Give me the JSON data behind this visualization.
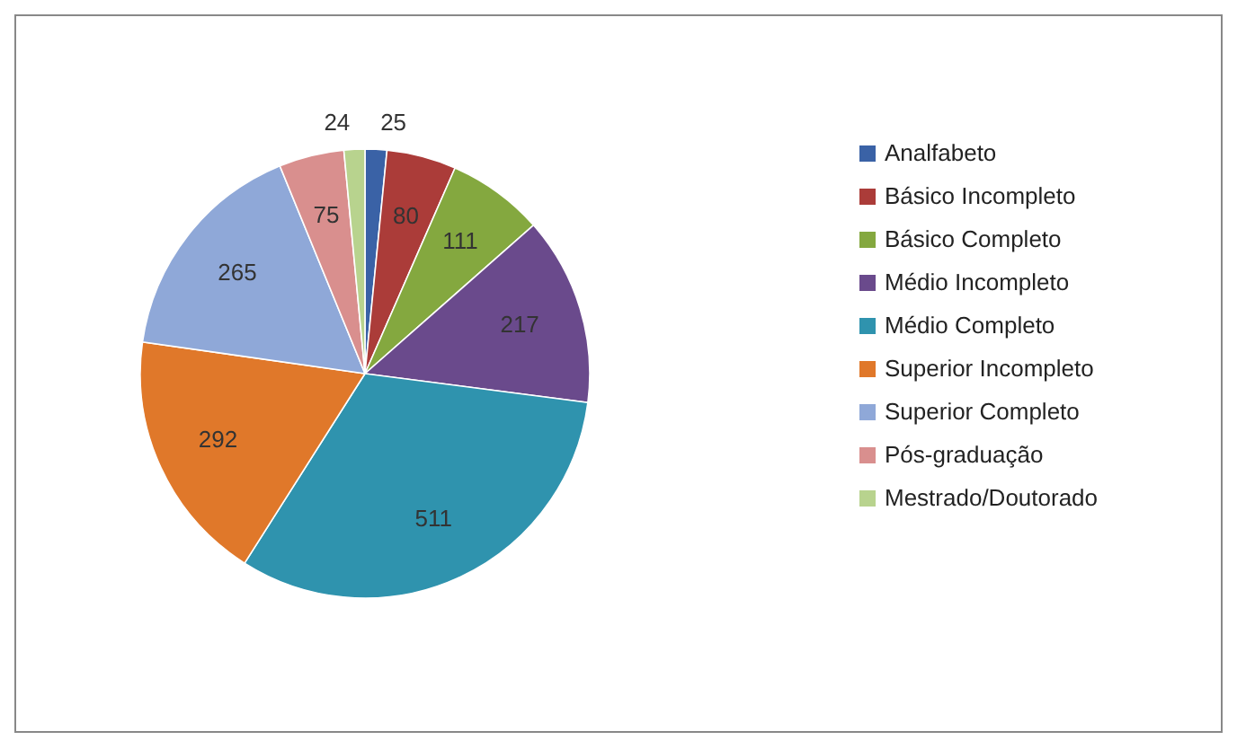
{
  "chart_data": {
    "type": "pie",
    "categories": [
      "Analfabeto",
      "Básico Incompleto",
      "Básico Completo",
      "Médio Incompleto",
      "Médio Completo",
      "Superior Incompleto",
      "Superior Completo",
      "Pós-graduação",
      "Mestrado/Doutorado"
    ],
    "values": [
      25,
      80,
      111,
      217,
      511,
      292,
      265,
      75,
      24
    ],
    "colors": [
      "#3a62a6",
      "#ab3c39",
      "#84a83f",
      "#6a4a8c",
      "#2f93ae",
      "#e0782a",
      "#8fa8d8",
      "#d98f8e",
      "#b8d38e"
    ],
    "data_labels": true,
    "legend": "right"
  }
}
